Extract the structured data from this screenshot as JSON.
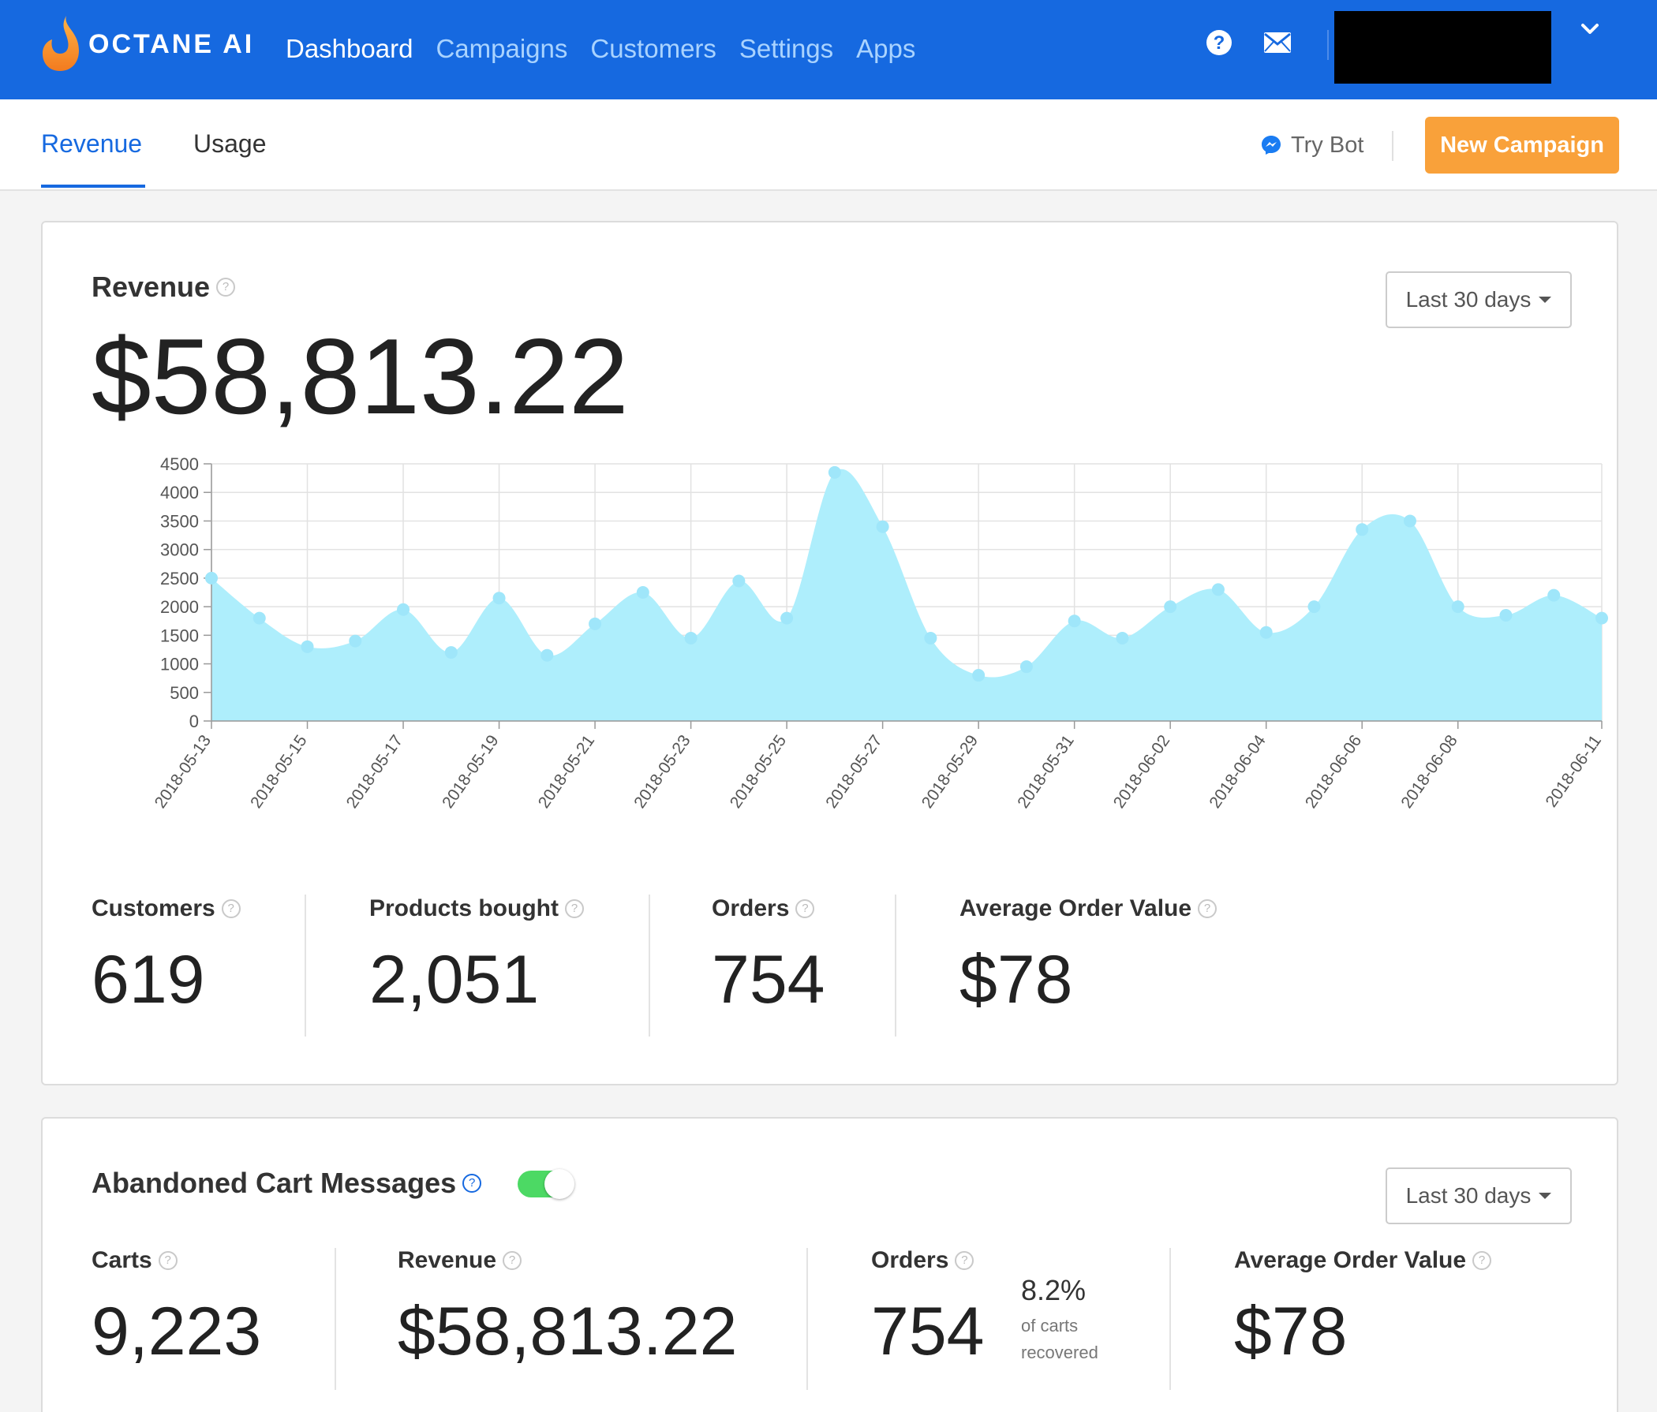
{
  "header": {
    "logo_text": "OCTANE AI",
    "nav": [
      "Dashboard",
      "Campaigns",
      "Customers",
      "Settings",
      "Apps"
    ],
    "active_nav": "Dashboard",
    "icons": [
      "help-icon",
      "mail-icon",
      "chevron-down-icon"
    ]
  },
  "subnav": {
    "tabs": [
      "Revenue",
      "Usage"
    ],
    "active_tab": "Revenue",
    "try_bot": "Try Bot",
    "new_campaign": "New Campaign"
  },
  "revenue_card": {
    "title": "Revenue",
    "range": "Last 30 days",
    "total": "$58,813.22",
    "stats": [
      {
        "label": "Customers",
        "value": "619"
      },
      {
        "label": "Products bought",
        "value": "2,051"
      },
      {
        "label": "Orders",
        "value": "754"
      },
      {
        "label": "Average Order Value",
        "value": "$78"
      }
    ]
  },
  "abandoned_card": {
    "title": "Abandoned Cart Messages",
    "toggle_on": true,
    "range": "Last 30 days",
    "stats": [
      {
        "label": "Carts",
        "value": "9,223"
      },
      {
        "label": "Revenue",
        "value": "$58,813.22"
      },
      {
        "label": "Orders",
        "value": "754"
      },
      {
        "label": "Average Order Value",
        "value": "$78"
      }
    ],
    "recovered_pct": "8.2%",
    "recovered_label_1": "of carts",
    "recovered_label_2": "recovered"
  },
  "colors": {
    "brand_blue": "#1669e0",
    "nav_inactive": "#a9d3ff",
    "orange": "#f9a13a",
    "chart_fill": "#aeeefc",
    "chart_point": "#9fe6fa",
    "toggle_green": "#4cd964"
  },
  "chart_data": {
    "type": "area",
    "x": [
      "2018-05-13",
      "2018-05-14",
      "2018-05-15",
      "2018-05-16",
      "2018-05-17",
      "2018-05-18",
      "2018-05-19",
      "2018-05-20",
      "2018-05-21",
      "2018-05-22",
      "2018-05-23",
      "2018-05-24",
      "2018-05-25",
      "2018-05-26",
      "2018-05-27",
      "2018-05-28",
      "2018-05-29",
      "2018-05-30",
      "2018-05-31",
      "2018-06-01",
      "2018-06-02",
      "2018-06-03",
      "2018-06-04",
      "2018-06-05",
      "2018-06-06",
      "2018-06-07",
      "2018-06-08",
      "2018-06-09",
      "2018-06-10",
      "2018-06-11"
    ],
    "values": [
      2500,
      1800,
      1300,
      1400,
      1950,
      1200,
      2150,
      1150,
      1700,
      2250,
      1450,
      2450,
      1800,
      4350,
      3400,
      1450,
      800,
      950,
      1750,
      1450,
      2000,
      2300,
      1550,
      2000,
      3350,
      3500,
      2000,
      1850,
      2200,
      1800
    ],
    "xticks": [
      "2018-05-13",
      "2018-05-15",
      "2018-05-17",
      "2018-05-19",
      "2018-05-21",
      "2018-05-23",
      "2018-05-25",
      "2018-05-27",
      "2018-05-29",
      "2018-05-31",
      "2018-06-02",
      "2018-06-04",
      "2018-06-06",
      "2018-06-08",
      "2018-06-11"
    ],
    "yticks": [
      0,
      500,
      1000,
      1500,
      2000,
      2500,
      3000,
      3500,
      4000,
      4500
    ],
    "ylim": [
      0,
      4500
    ],
    "grid": true,
    "title": "",
    "xlabel": "",
    "ylabel": ""
  }
}
